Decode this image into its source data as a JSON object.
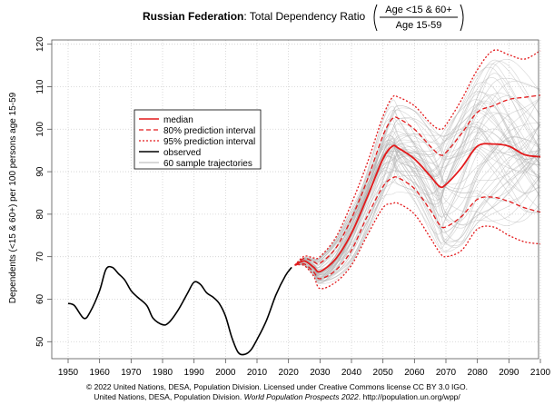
{
  "chart_data": {
    "type": "line",
    "title": {
      "bold": "Russian Federation",
      "rest": ": Total Dependency Ratio",
      "fraction_numerator": "Age <15 & 60+",
      "fraction_denominator": "Age 15-59"
    },
    "ylabel": "Dependents (<15 & 60+) per 100 persons age 15-59",
    "xlabel": "",
    "xlim": [
      1950,
      2100
    ],
    "ylim": [
      46,
      121
    ],
    "x_ticks": [
      1950,
      1960,
      1970,
      1980,
      1990,
      2000,
      2010,
      2020,
      2030,
      2040,
      2050,
      2060,
      2070,
      2080,
      2090,
      2100
    ],
    "y_ticks": [
      50,
      60,
      70,
      80,
      90,
      100,
      110,
      120
    ],
    "grid": true,
    "legend_position": "upper-left",
    "legend": [
      {
        "label": "median",
        "style": "solid-red"
      },
      {
        "label": "80% prediction interval",
        "style": "dashed-red"
      },
      {
        "label": "95% prediction interval",
        "style": "dotted-red"
      },
      {
        "label": "observed",
        "style": "solid-black"
      },
      {
        "label": "60 sample trajectories",
        "style": "solid-gray"
      }
    ],
    "observed": {
      "x": [
        1950,
        1952,
        1955,
        1957,
        1960,
        1962,
        1964,
        1966,
        1968,
        1970,
        1972,
        1975,
        1977,
        1980,
        1982,
        1985,
        1988,
        1990,
        1992,
        1994,
        1996,
        1998,
        2000,
        2002,
        2004,
        2006,
        2008,
        2010,
        2013,
        2016,
        2019,
        2021
      ],
      "y": [
        59,
        58.5,
        55.5,
        57,
        62,
        67,
        67.5,
        66,
        64.5,
        62,
        60.5,
        58.5,
        55.5,
        54,
        54.5,
        57.5,
        61.5,
        64,
        63.5,
        61.5,
        60.5,
        59,
        56,
        51,
        47.5,
        47,
        48,
        50.5,
        55,
        61,
        65.5,
        67.5
      ]
    },
    "projection": {
      "x": [
        2022,
        2025,
        2028,
        2030,
        2035,
        2040,
        2045,
        2050,
        2053,
        2055,
        2060,
        2065,
        2068,
        2070,
        2075,
        2080,
        2085,
        2090,
        2095,
        2100
      ],
      "median": [
        68,
        69,
        67.5,
        66.5,
        69.5,
        75.5,
        84,
        93,
        96,
        95.5,
        93,
        89,
        86.5,
        87,
        91,
        96,
        96.5,
        96,
        94,
        93.5
      ],
      "pi80_upper": [
        68,
        69.6,
        68.8,
        68.5,
        72,
        79,
        88,
        98.5,
        102.5,
        102.5,
        100,
        96,
        94,
        94.5,
        99,
        104,
        105.5,
        107,
        107.5,
        108
      ],
      "pi80_lower": [
        68,
        68.3,
        66.4,
        64.8,
        66.8,
        71.5,
        79.5,
        86.5,
        88.5,
        88.5,
        86,
        81,
        77.5,
        77,
        79.5,
        83.5,
        84,
        83,
        81.5,
        80.5
      ],
      "pi95_upper": [
        68,
        70.1,
        69.7,
        70,
        74.5,
        82.5,
        92,
        103,
        107.5,
        107.5,
        105.5,
        101.5,
        100,
        101,
        107,
        114,
        118.5,
        117.5,
        116.5,
        118.5
      ],
      "pi95_lower": [
        68,
        67.9,
        65.4,
        62.5,
        64,
        68,
        75,
        81.5,
        82.5,
        82.5,
        80,
        74.5,
        71,
        70,
        71.5,
        76.5,
        77,
        75,
        73.5,
        73
      ],
      "sample_trajectory_count": 60
    },
    "colors": {
      "median": "#e31a1c",
      "intervals": "#e31a1c",
      "observed": "#000000",
      "samples": "#b0b0b0",
      "grid": "#cfcfcf",
      "axis": "#555555"
    }
  },
  "credits": {
    "line1": "© 2022 United Nations, DESA, Population Division. Licensed under Creative Commons license CC BY 3.0 IGO.",
    "line2_prefix": "United Nations, DESA, Population Division. ",
    "line2_italic": "World Population Prospects 2022",
    "line2_suffix": ". http://population.un.org/wpp/"
  }
}
